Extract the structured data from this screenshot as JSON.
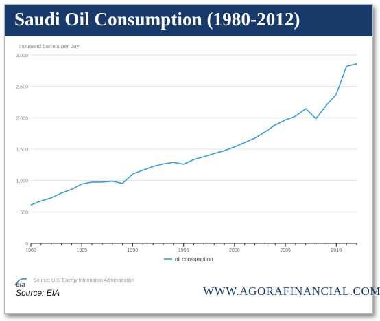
{
  "header": {
    "title": "Saudi Oil Consumption (1980-2012)"
  },
  "chart_data": {
    "type": "line",
    "title": "Saudi Oil Consumption (1980-2012)",
    "ylabel": "thousand barrels per day",
    "xlabel": "",
    "xlim": [
      1980,
      2012
    ],
    "ylim": [
      0,
      3000
    ],
    "x_ticks": [
      "1980",
      "1985",
      "1990",
      "1995",
      "2000",
      "2005",
      "2010"
    ],
    "y_ticks": [
      "0",
      "500",
      "1,000",
      "1,500",
      "2,000",
      "2,500",
      "3,000"
    ],
    "grid": true,
    "legend": "bottom-center",
    "series": [
      {
        "name": "oil consumption",
        "color": "#3a9ad9",
        "x": [
          1980,
          1981,
          1982,
          1983,
          1984,
          1985,
          1986,
          1987,
          1988,
          1989,
          1990,
          1991,
          1992,
          1993,
          1994,
          1995,
          1996,
          1997,
          1998,
          1999,
          2000,
          2001,
          2002,
          2003,
          2004,
          2005,
          2006,
          2007,
          2008,
          2009,
          2010,
          2011,
          2012
        ],
        "values": [
          610,
          675,
          725,
          800,
          860,
          945,
          975,
          975,
          990,
          955,
          1105,
          1165,
          1225,
          1265,
          1290,
          1260,
          1335,
          1380,
          1430,
          1475,
          1535,
          1605,
          1675,
          1775,
          1885,
          1965,
          2025,
          2145,
          1985,
          2195,
          2375,
          2820,
          2860
        ]
      }
    ]
  },
  "footer": {
    "logo_label": "eia",
    "source_note": "Source: U.S. Energy Information Administration",
    "source_label": "Source: EIA",
    "website": "WWW.AGORAFINANCIAL.COM"
  }
}
